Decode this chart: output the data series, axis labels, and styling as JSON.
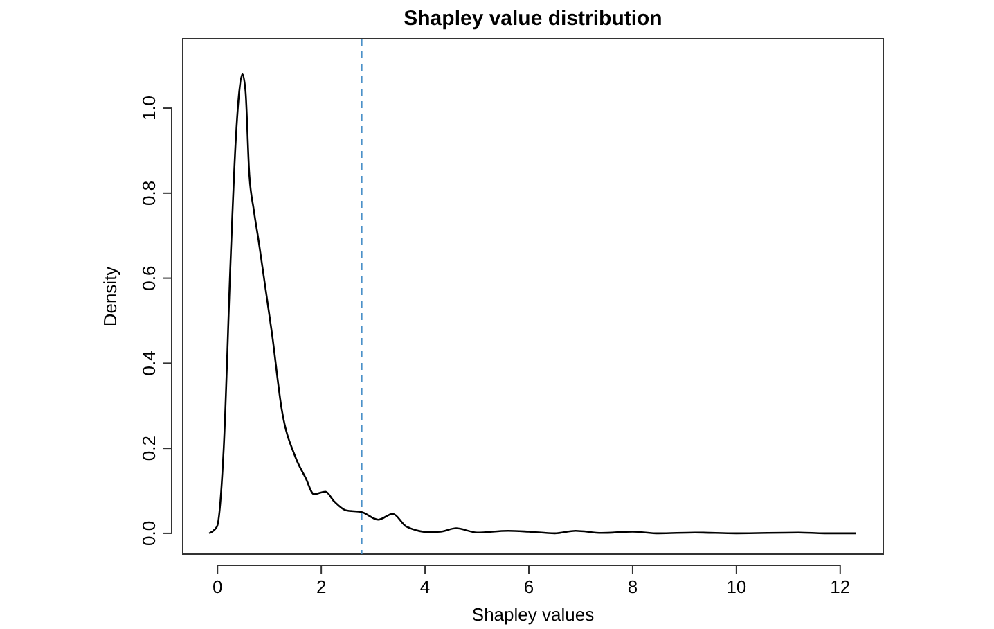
{
  "chart_data": {
    "type": "line",
    "title": "Shapley value distribution",
    "xlabel": "Shapley values",
    "ylabel": "Density",
    "x": [
      -0.16,
      -0.01,
      0.12,
      0.25,
      0.35,
      0.42,
      0.48,
      0.54,
      0.61,
      0.7,
      0.79,
      0.92,
      1.05,
      1.24,
      1.5,
      1.7,
      1.86,
      2.08,
      2.25,
      2.48,
      2.78,
      3.1,
      3.38,
      3.64,
      4.08,
      4.3,
      4.6,
      5.0,
      5.6,
      6.0,
      6.5,
      6.9,
      7.4,
      8.0,
      8.5,
      9.2,
      10.0,
      11.2,
      11.7,
      12.3
    ],
    "series": [
      {
        "color": "#000000",
        "values": [
          0.0,
          0.016,
          0.2,
          0.635,
          0.92,
          1.04,
          1.08,
          1.04,
          0.85,
          0.76,
          0.69,
          0.58,
          0.47,
          0.29,
          0.18,
          0.13,
          0.092,
          0.098,
          0.075,
          0.054,
          0.05,
          0.032,
          0.046,
          0.016,
          0.003,
          0.004,
          0.012,
          0.002,
          0.006,
          0.004,
          0.0,
          0.006,
          0.001,
          0.004,
          0.0,
          0.002,
          0.0,
          0.002,
          0.0,
          0.0
        ]
      }
    ],
    "xlim": [
      -0.67,
      12.83
    ],
    "ylim": [
      -0.049,
      1.163
    ],
    "xticks": [
      0,
      2,
      4,
      6,
      8,
      10,
      12
    ],
    "yticks": [
      {
        "value": 0,
        "label": "0.0"
      },
      {
        "value": 0.2,
        "label": "0.2"
      },
      {
        "value": 0.4,
        "label": "0.4"
      },
      {
        "value": 0.6,
        "label": "0.6"
      },
      {
        "value": 0.8,
        "label": "0.8"
      },
      {
        "value": 1.0,
        "label": "1.0"
      }
    ],
    "ref_lines": [
      {
        "axis": "x",
        "value": 2.78,
        "color": "#4a90c8",
        "line_style": "dashed"
      }
    ],
    "grid": false
  }
}
